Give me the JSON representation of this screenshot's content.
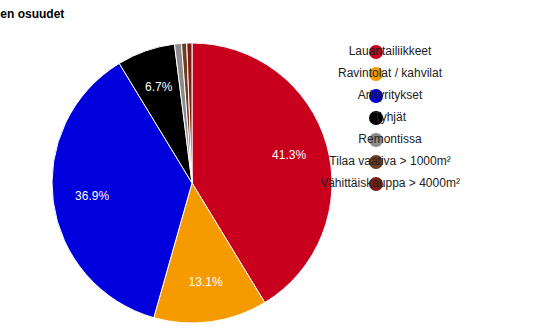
{
  "chart_data": {
    "type": "pie",
    "title": "Liiketilojen osuudet",
    "categories": [
      "Lauantailiikkeet",
      "Ravintolat / kahvilat",
      "Arkiyritykset",
      "Tyhjät",
      "Remontissa",
      "Tilaa vaativa > 1000m²",
      "Vähittäiskauppa > 4000m²"
    ],
    "values": [
      41.3,
      13.1,
      36.9,
      6.7,
      0.8,
      0.6,
      0.6
    ],
    "value_labels": [
      "41.3%",
      "13.1%",
      "36.9%",
      "6.7%",
      null,
      null,
      null
    ],
    "colors": [
      "#c8001e",
      "#f59b00",
      "#0000dc",
      "#000000",
      "#8c8c8c",
      "#6e3c1e",
      "#7d1e14"
    ],
    "data_labels": true,
    "legend": "right"
  }
}
